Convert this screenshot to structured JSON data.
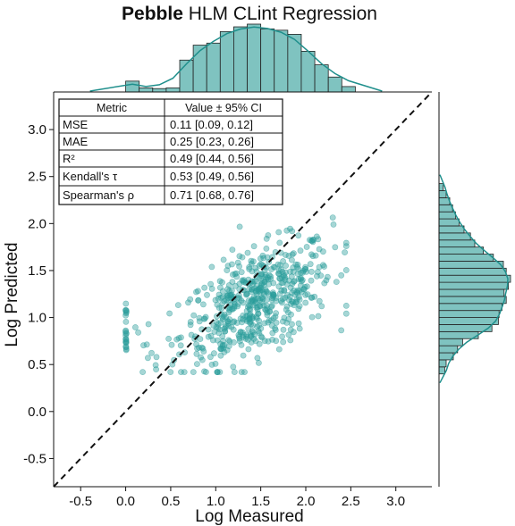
{
  "chart_data": {
    "type": "scatter",
    "title_bold": "Pebble",
    "title_rest": " HLM CLint Regression",
    "xlabel": "Log Measured",
    "ylabel": "Log Predicted",
    "xlim": [
      -0.8,
      3.4
    ],
    "ylim": [
      -0.8,
      3.4
    ],
    "xticks": [
      -0.5,
      0.0,
      0.5,
      1.0,
      1.5,
      2.0,
      2.5,
      3.0
    ],
    "yticks": [
      -0.5,
      0.0,
      0.5,
      1.0,
      1.5,
      2.0,
      2.5,
      3.0
    ],
    "xtick_labels": [
      "-0.5",
      "0.0",
      "0.5",
      "1.0",
      "1.5",
      "2.0",
      "2.5",
      "3.0"
    ],
    "ytick_labels": [
      "-0.5",
      "0.0",
      "0.5",
      "1.0",
      "1.5",
      "2.0",
      "2.5",
      "3.0"
    ],
    "point_color": "#2a9d9a",
    "hist_color": "#7fc3c0",
    "kde_color": "#1f8f8c",
    "identity_line": {
      "from": [
        -0.8,
        -0.8
      ],
      "to": [
        3.4,
        3.4
      ],
      "style": "dashed"
    },
    "approx_point_count": 600,
    "x_hist": {
      "bin_edges": [
        0.0,
        0.15,
        0.3,
        0.45,
        0.6,
        0.75,
        0.9,
        1.05,
        1.2,
        1.35,
        1.5,
        1.65,
        1.8,
        1.95,
        2.1,
        2.25,
        2.4,
        2.55
      ],
      "relative_heights": [
        0.16,
        0.06,
        0.05,
        0.06,
        0.47,
        0.69,
        0.72,
        0.89,
        0.96,
        1.0,
        0.93,
        0.91,
        0.85,
        0.6,
        0.4,
        0.22,
        0.08
      ]
    },
    "y_hist": {
      "bin_edges": [
        0.4,
        0.475,
        0.55,
        0.625,
        0.7,
        0.775,
        0.85,
        0.925,
        1.0,
        1.075,
        1.15,
        1.225,
        1.3,
        1.375,
        1.45,
        1.525,
        1.6,
        1.675,
        1.75,
        1.825,
        1.9,
        1.975,
        2.05,
        2.125,
        2.2,
        2.275,
        2.35,
        2.425
      ],
      "relative_heights": [
        0.08,
        0.1,
        0.2,
        0.26,
        0.33,
        0.55,
        0.74,
        0.83,
        0.84,
        0.88,
        0.94,
        0.91,
        0.97,
        1.0,
        0.94,
        0.9,
        0.76,
        0.62,
        0.5,
        0.44,
        0.35,
        0.28,
        0.23,
        0.19,
        0.15,
        0.1,
        0.06
      ]
    },
    "metrics_table": {
      "header": [
        "Metric",
        "Value ± 95% CI"
      ],
      "rows": [
        {
          "metric": "MSE",
          "value": "0.11 [0.09, 0.12]"
        },
        {
          "metric": "MAE",
          "value": "0.25 [0.23, 0.26]"
        },
        {
          "metric": "R²",
          "value": "0.49 [0.44, 0.56]"
        },
        {
          "metric": "Kendall's τ",
          "value": "0.53 [0.49, 0.56]"
        },
        {
          "metric": "Spearman's ρ",
          "value": "0.71 [0.68, 0.76]"
        }
      ]
    }
  }
}
